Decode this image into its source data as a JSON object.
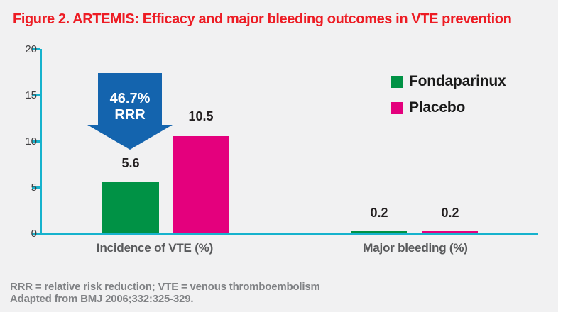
{
  "title": "Figure 2. ARTEMIS: Efficacy and major bleeding outcomes in VTE prevention",
  "colors": {
    "panel_bg": "#F1F1F2",
    "title_red": "#ED1C24",
    "axis_cyan": "#16B2CD",
    "arrow_blue": "#1464AE",
    "fondaparinux_green": "#009245",
    "placebo_magenta": "#E4007D",
    "footnote_gray": "#808285",
    "category_gray": "#58595B"
  },
  "chart_data": {
    "type": "bar",
    "categories": [
      "Incidence of VTE (%)",
      "Major bleeding (%)"
    ],
    "series": [
      {
        "name": "Fondaparinux",
        "color": "#009245",
        "values": [
          5.6,
          0.2
        ]
      },
      {
        "name": "Placebo",
        "color": "#E4007D",
        "values": [
          10.5,
          0.2
        ]
      }
    ],
    "ylim": [
      0,
      20
    ],
    "yticks": [
      "20",
      "15",
      "10",
      "5",
      "0"
    ],
    "grid": false,
    "legend_position": "upper-right",
    "annotation": {
      "line1": "46.7%",
      "line2": "RRR"
    }
  },
  "footnotes": {
    "line1": "RRR = relative risk reduction; VTE = venous thromboembolism",
    "line2": "Adapted from BMJ 2006;332:325-329."
  }
}
